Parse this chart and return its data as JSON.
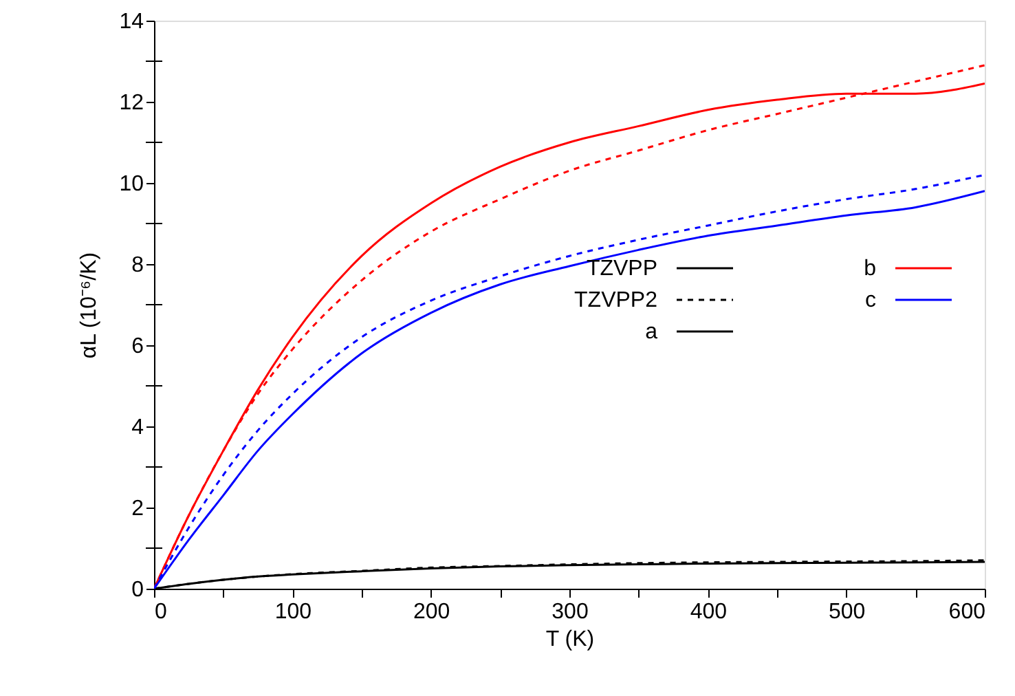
{
  "chart_data": {
    "type": "line",
    "xlabel": "T (K)",
    "ylabel": "αL (10⁻⁶/K)",
    "x": [
      0,
      25,
      50,
      75,
      100,
      150,
      200,
      250,
      300,
      350,
      400,
      450,
      500,
      550,
      600
    ],
    "series": [
      {
        "name": "a",
        "color": "#000000",
        "line_style": "solid",
        "values": [
          0,
          0.12,
          0.22,
          0.3,
          0.35,
          0.43,
          0.5,
          0.55,
          0.58,
          0.6,
          0.62,
          0.63,
          0.64,
          0.65,
          0.66
        ]
      },
      {
        "color": "#000000",
        "line_style": "dashed",
        "values": [
          0,
          0.12,
          0.22,
          0.3,
          0.36,
          0.44,
          0.52,
          0.56,
          0.6,
          0.63,
          0.65,
          0.66,
          0.67,
          0.68,
          0.7
        ]
      },
      {
        "name": "b",
        "color": "#ff0000",
        "line_style": "solid",
        "values": [
          0,
          1.8,
          3.4,
          4.9,
          6.2,
          8.2,
          9.5,
          10.4,
          11.0,
          11.4,
          11.8,
          12.05,
          12.2,
          12.2,
          12.45
        ]
      },
      {
        "color": "#ff0000",
        "line_style": "dashed",
        "values": [
          0,
          1.8,
          3.4,
          4.8,
          5.9,
          7.6,
          8.8,
          9.6,
          10.3,
          10.8,
          11.3,
          11.7,
          12.1,
          12.5,
          12.9
        ]
      },
      {
        "name": "c",
        "color": "#0000ff",
        "line_style": "solid",
        "values": [
          0,
          1.2,
          2.3,
          3.4,
          4.3,
          5.8,
          6.8,
          7.5,
          7.95,
          8.35,
          8.7,
          8.95,
          9.2,
          9.4,
          9.8
        ]
      },
      {
        "color": "#0000ff",
        "line_style": "dashed",
        "values": [
          0,
          1.5,
          2.8,
          3.9,
          4.8,
          6.2,
          7.1,
          7.7,
          8.2,
          8.6,
          8.95,
          9.3,
          9.6,
          9.85,
          10.2
        ]
      }
    ],
    "annotations": [
      "TZVPP",
      "TZVPP2"
    ],
    "xlim": [
      0,
      600
    ],
    "ylim": [
      0,
      14
    ],
    "xticks": [
      0,
      {
        "value": 50,
        "label": null
      },
      100,
      {
        "value": 150,
        "label": null
      },
      200,
      {
        "value": 250,
        "label": null
      },
      300,
      {
        "value": 350,
        "label": null
      },
      400,
      {
        "value": 450,
        "label": null
      },
      500,
      {
        "value": 550,
        "label": null
      },
      600
    ],
    "yticks": [
      0,
      {
        "value": 1,
        "label": null
      },
      2,
      {
        "value": 3,
        "label": null
      },
      4,
      {
        "value": 5,
        "label": null
      },
      6,
      {
        "value": 7,
        "label": null
      },
      8,
      {
        "value": 9,
        "label": null
      },
      10,
      {
        "value": 11,
        "label": null
      },
      12,
      {
        "value": 13,
        "label": null
      },
      14
    ],
    "grid": false,
    "legend": "right",
    "marker": "none"
  }
}
